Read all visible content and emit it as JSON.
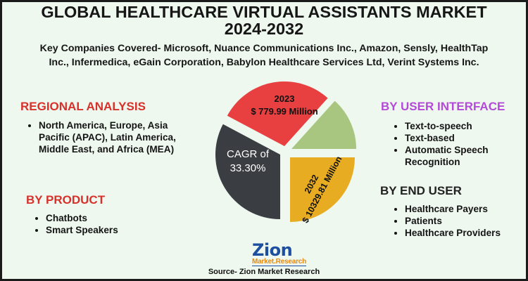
{
  "title_line1": "GLOBAL HEALTHCARE VIRTUAL ASSISTANTS MARKET",
  "title_line2": "2024-2032",
  "subtitle_line1": "Key Companies Covered- Microsoft, Nuance Communications Inc., Amazon, Sensly, HealthTap",
  "subtitle_line2": "Inc., Infermedica, eGain Corporation, Babylon Healthcare Services Ltd, Verint Systems Inc.",
  "regional": {
    "heading": "REGIONAL ANALYSIS",
    "items": [
      "North America, Europe, Asia Pacific (APAC), Latin America, Middle East, and Africa (MEA)"
    ]
  },
  "product": {
    "heading": "BY PRODUCT",
    "items": [
      "Chatbots",
      "Smart Speakers"
    ]
  },
  "user_interface": {
    "heading": "BY USER INTERFACE",
    "items": [
      "Text-to-speech",
      "Text-based",
      "Automatic Speech Recognition"
    ]
  },
  "end_user": {
    "heading": "BY END USER",
    "items": [
      "Healthcare Payers",
      "Patients",
      "Healthcare Providers"
    ]
  },
  "chart_data": {
    "type": "pie",
    "slices": [
      {
        "label_line1": "2023",
        "label_line2": "$ 779.99 Million",
        "value": 779.99,
        "color": "#e84040"
      },
      {
        "label_line1": "",
        "label_line2": "",
        "color": "#a8c680"
      },
      {
        "label_line1": "2032",
        "label_line2": "$ 10329.81 Million",
        "value": 10329.81,
        "color": "#e8ac22"
      },
      {
        "label_line1": "CAGR of",
        "label_line2": "33.30%",
        "value": 33.3,
        "color": "#3a3d42"
      }
    ]
  },
  "logo": {
    "main": "Zion",
    "sub": "Market.Research"
  },
  "source": "Source- Zion Market Research",
  "colors": {
    "accent_red": "#d8312b",
    "accent_purple": "#b44ad8",
    "background": "#eef8ee"
  }
}
